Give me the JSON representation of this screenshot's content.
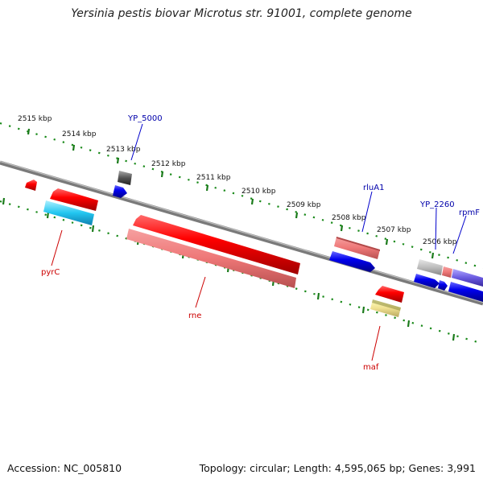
{
  "title": "Yersinia pestis biovar Microtus str. 91001, complete genome",
  "footer": {
    "accession": "Accession: NC_005810",
    "summary": "Topology: circular; Length: 4,595,065 bp; Genes: 3,991"
  },
  "ticks": [
    "2515 kbp",
    "2514 kbp",
    "2513 kbp",
    "2512 kbp",
    "2511 kbp",
    "2510 kbp",
    "2509 kbp",
    "2508 kbp",
    "2507 kbp",
    "2506 kbp"
  ],
  "gene_labels": [
    {
      "name": "YP_5000",
      "color": "#0000aa"
    },
    {
      "name": "rluA1",
      "color": "#0000aa"
    },
    {
      "name": "YP_2260",
      "color": "#0000aa"
    },
    {
      "name": "rpmF",
      "color": "#0000aa"
    },
    {
      "name": "pyrC",
      "color": "#cc0000"
    },
    {
      "name": "rne",
      "color": "#cc0000"
    },
    {
      "name": "maf",
      "color": "#cc0000"
    }
  ]
}
